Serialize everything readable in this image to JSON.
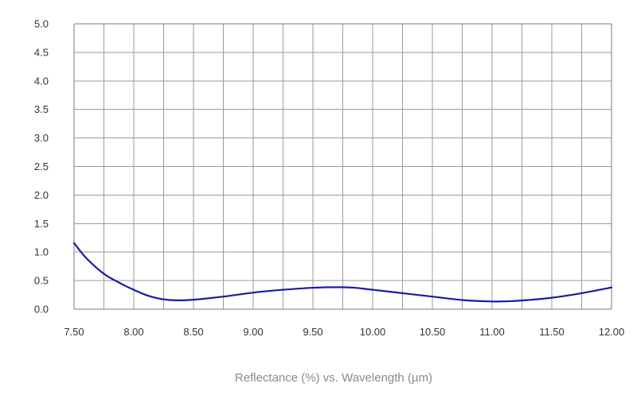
{
  "colors": {
    "line": "#1a1aa8",
    "grid": "#9a9a9a",
    "frame": "#7a7a7a",
    "text": "#333333",
    "xlabel": "#8a8a8a"
  },
  "chart_data": {
    "type": "line",
    "title": "",
    "xlabel": "Reflectance (%) vs. Wavelength (µm)",
    "ylabel": "",
    "xlim": [
      7.5,
      12.0
    ],
    "ylim": [
      0.0,
      5.0
    ],
    "grid": true,
    "x_ticks": [
      "7.50",
      "8.00",
      "8.50",
      "9.00",
      "9.50",
      "10.00",
      "10.50",
      "11.00",
      "11.50",
      "12.00"
    ],
    "y_ticks": [
      "0.0",
      "0.5",
      "1.0",
      "1.5",
      "2.0",
      "2.5",
      "3.0",
      "3.5",
      "4.0",
      "4.5",
      "5.0"
    ],
    "series": [
      {
        "x": [
          7.5,
          7.6,
          7.75,
          7.9,
          8.0,
          8.1,
          8.2,
          8.3,
          8.4,
          8.5,
          8.75,
          9.0,
          9.25,
          9.5,
          9.7,
          9.85,
          10.0,
          10.25,
          10.5,
          10.75,
          11.0,
          11.15,
          11.3,
          11.5,
          11.75,
          12.0
        ],
        "y": [
          1.16,
          0.9,
          0.62,
          0.44,
          0.34,
          0.25,
          0.19,
          0.16,
          0.155,
          0.165,
          0.22,
          0.29,
          0.34,
          0.375,
          0.385,
          0.375,
          0.34,
          0.28,
          0.22,
          0.16,
          0.135,
          0.14,
          0.16,
          0.2,
          0.28,
          0.38
        ]
      }
    ]
  }
}
